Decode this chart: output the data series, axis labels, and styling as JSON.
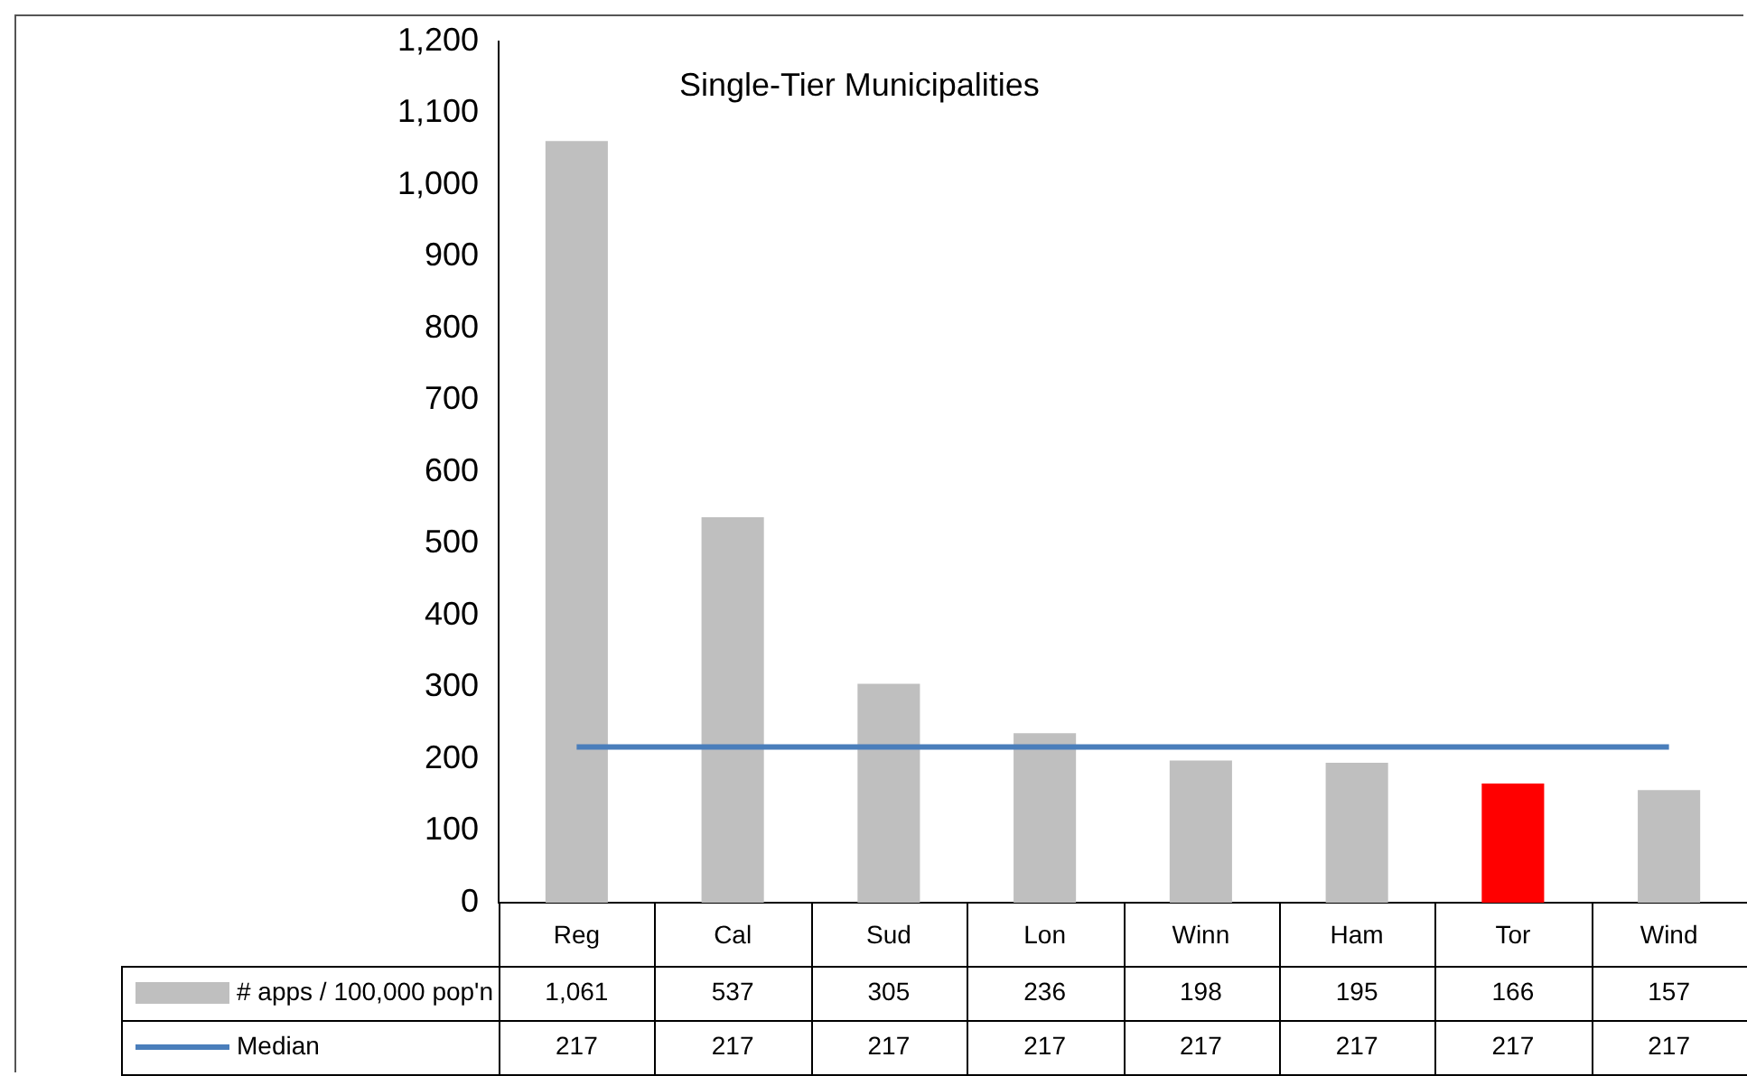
{
  "chart_data": {
    "type": "bar",
    "title": "Single-Tier Municipalities",
    "categories": [
      "Reg",
      "Cal",
      "Sud",
      "Lon",
      "Winn",
      "Ham",
      "Tor",
      "Wind"
    ],
    "series": [
      {
        "name": "# apps / 100,000 pop'n",
        "colors": [
          "#bfbfbf",
          "#bfbfbf",
          "#bfbfbf",
          "#bfbfbf",
          "#bfbfbf",
          "#bfbfbf",
          "#ff0000",
          "#bfbfbf"
        ],
        "color": "#bfbfbf",
        "values": [
          1061,
          537,
          305,
          236,
          198,
          195,
          166,
          157
        ],
        "value_labels": [
          "1,061",
          "537",
          "305",
          "236",
          "198",
          "195",
          "166",
          "157"
        ]
      },
      {
        "name": "Median",
        "type": "line",
        "color": "#4a7ebb",
        "values": [
          217,
          217,
          217,
          217,
          217,
          217,
          217,
          217
        ],
        "value_labels": [
          "217",
          "217",
          "217",
          "217",
          "217",
          "217",
          "217",
          "217"
        ]
      }
    ],
    "ylim": [
      0,
      1200
    ],
    "yticks": [
      0,
      100,
      200,
      300,
      400,
      500,
      600,
      700,
      800,
      900,
      {
        "value": 1000,
        "label": "1,000"
      },
      {
        "value": 1100,
        "label": "1,100"
      },
      {
        "value": 1200,
        "label": "1,200"
      }
    ],
    "grid": false,
    "legend": "bottom",
    "marker": "none"
  }
}
